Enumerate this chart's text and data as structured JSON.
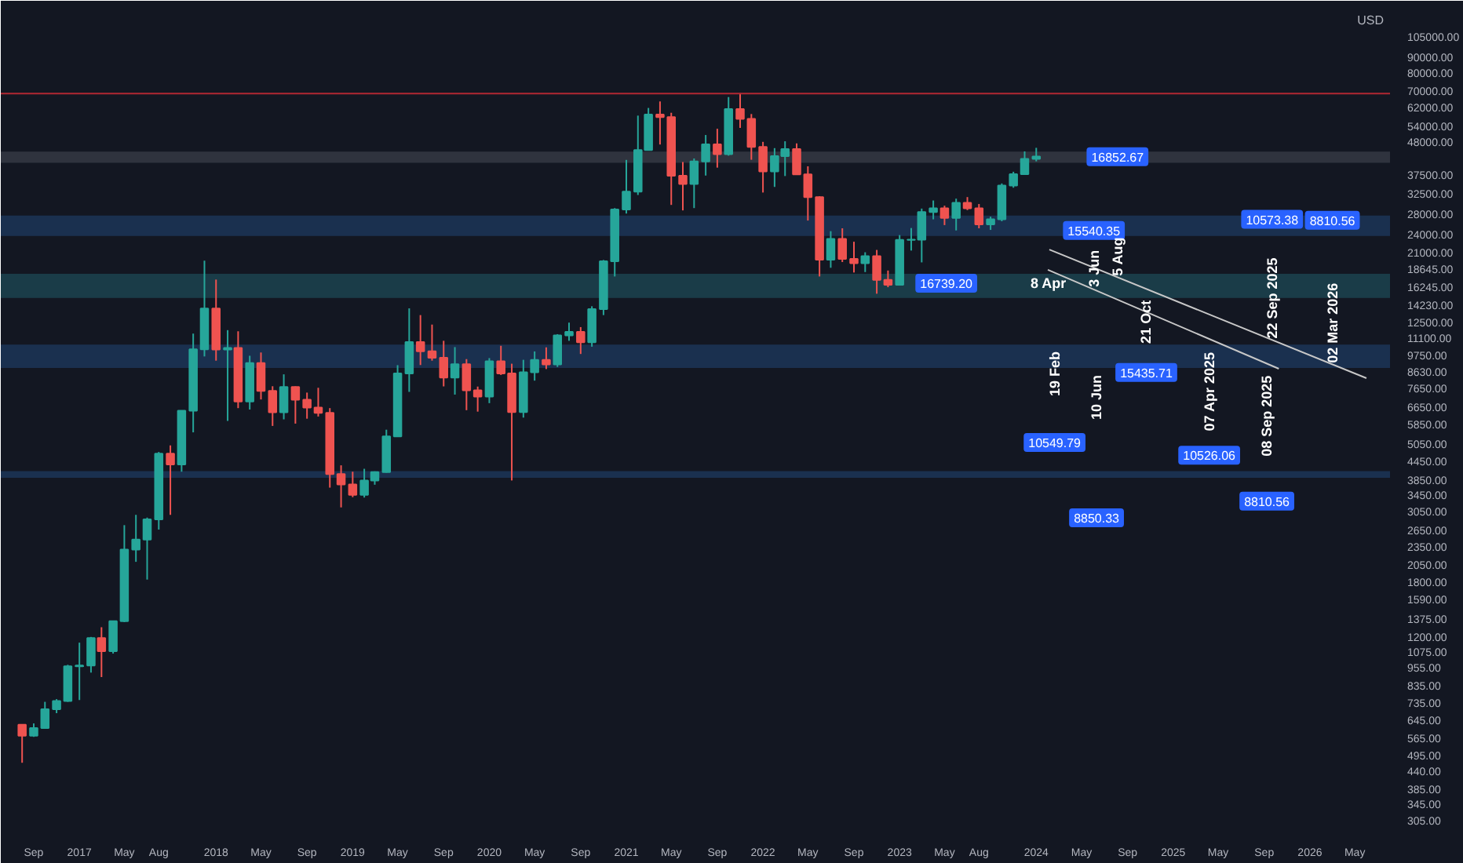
{
  "chart_data": {
    "type": "candlestick",
    "ylabel": "USD",
    "log": true,
    "x": [
      "2016-08",
      "2016-09",
      "2016-10",
      "2016-11",
      "2016-12",
      "2017-01",
      "2017-02",
      "2017-03",
      "2017-04",
      "2017-05",
      "2017-06",
      "2017-07",
      "2017-08",
      "2017-09",
      "2017-10",
      "2017-11",
      "2017-12",
      "2018-01",
      "2018-02",
      "2018-03",
      "2018-04",
      "2018-05",
      "2018-06",
      "2018-07",
      "2018-08",
      "2018-09",
      "2018-10",
      "2018-11",
      "2018-12",
      "2019-01",
      "2019-02",
      "2019-03",
      "2019-04",
      "2019-05",
      "2019-06",
      "2019-07",
      "2019-08",
      "2019-09",
      "2019-10",
      "2019-11",
      "2019-12",
      "2020-01",
      "2020-02",
      "2020-03",
      "2020-04",
      "2020-05",
      "2020-06",
      "2020-07",
      "2020-08",
      "2020-09",
      "2020-10",
      "2020-11",
      "2020-12",
      "2021-01",
      "2021-02",
      "2021-03",
      "2021-04",
      "2021-05",
      "2021-06",
      "2021-07",
      "2021-08",
      "2021-09",
      "2021-10",
      "2021-11",
      "2021-12",
      "2022-01",
      "2022-02",
      "2022-03",
      "2022-04",
      "2022-05",
      "2022-06",
      "2022-07",
      "2022-08",
      "2022-09",
      "2022-10",
      "2022-11",
      "2022-12",
      "2023-01",
      "2023-02",
      "2023-03",
      "2023-04",
      "2023-05",
      "2023-06",
      "2023-07",
      "2023-08",
      "2023-09",
      "2023-10",
      "2023-11",
      "2023-12",
      "2024-01"
    ],
    "ohlc": [
      [
        624,
        626,
        470,
        575
      ],
      [
        575,
        630,
        570,
        609
      ],
      [
        609,
        740,
        605,
        700
      ],
      [
        700,
        755,
        680,
        745
      ],
      [
        745,
        975,
        740,
        964
      ],
      [
        964,
        1150,
        750,
        970
      ],
      [
        970,
        1200,
        920,
        1190
      ],
      [
        1190,
        1290,
        890,
        1080
      ],
      [
        1080,
        1350,
        1060,
        1350
      ],
      [
        1350,
        2760,
        1340,
        2300
      ],
      [
        2300,
        2980,
        2100,
        2480
      ],
      [
        2480,
        2920,
        1840,
        2880
      ],
      [
        2880,
        4760,
        2670,
        4700
      ],
      [
        4700,
        5000,
        2980,
        4340
      ],
      [
        4340,
        6470,
        4110,
        6470
      ],
      [
        6470,
        11500,
        5510,
        10230
      ],
      [
        10230,
        19800,
        9700,
        13860
      ],
      [
        13860,
        17200,
        9400,
        10220
      ],
      [
        10220,
        11800,
        6000,
        10330
      ],
      [
        10330,
        11700,
        6600,
        6930
      ],
      [
        6930,
        9750,
        6530,
        9240
      ],
      [
        9240,
        9990,
        7040,
        7500
      ],
      [
        7500,
        7770,
        5780,
        6400
      ],
      [
        6400,
        8490,
        6070,
        7730
      ],
      [
        7730,
        7760,
        5880,
        7030
      ],
      [
        7030,
        7410,
        6100,
        6630
      ],
      [
        6630,
        7680,
        6200,
        6370
      ],
      [
        6370,
        6600,
        3650,
        4040
      ],
      [
        4040,
        4310,
        3150,
        3740
      ],
      [
        3740,
        4110,
        3400,
        3460
      ],
      [
        3460,
        4200,
        3390,
        3850
      ],
      [
        3850,
        4120,
        3730,
        4100
      ],
      [
        4100,
        5620,
        4080,
        5350
      ],
      [
        5350,
        9090,
        5350,
        8550
      ],
      [
        8550,
        13880,
        7450,
        10800
      ],
      [
        10800,
        13200,
        9100,
        10080
      ],
      [
        10080,
        12300,
        9400,
        9600
      ],
      [
        9600,
        10900,
        7760,
        8290
      ],
      [
        8290,
        10400,
        7300,
        9150
      ],
      [
        9150,
        9510,
        6500,
        7540
      ],
      [
        7540,
        7750,
        6430,
        7190
      ],
      [
        7190,
        9580,
        6850,
        9350
      ],
      [
        9350,
        10500,
        8450,
        8540
      ],
      [
        8540,
        9190,
        3850,
        6410
      ],
      [
        6410,
        9460,
        6150,
        8620
      ],
      [
        8620,
        10070,
        8100,
        9450
      ],
      [
        9450,
        10380,
        8830,
        9140
      ],
      [
        9140,
        11450,
        8970,
        11350
      ],
      [
        11350,
        12480,
        10900,
        11650
      ],
      [
        11650,
        12070,
        9880,
        10780
      ],
      [
        10780,
        14100,
        10430,
        13800
      ],
      [
        13800,
        19900,
        13200,
        19700
      ],
      [
        19700,
        29300,
        17600,
        28990
      ],
      [
        28990,
        41950,
        28130,
        33110
      ],
      [
        33110,
        58350,
        32300,
        45140
      ],
      [
        45140,
        61780,
        45000,
        58800
      ],
      [
        58800,
        64850,
        47050,
        57750
      ],
      [
        57750,
        59600,
        30000,
        37300
      ],
      [
        37300,
        41300,
        28800,
        35040
      ],
      [
        35040,
        42400,
        29300,
        41460
      ],
      [
        41460,
        50500,
        37330,
        47100
      ],
      [
        47100,
        52900,
        39600,
        43790
      ],
      [
        43790,
        67000,
        43300,
        61300
      ],
      [
        61300,
        69000,
        53250,
        56950
      ],
      [
        56950,
        59050,
        42000,
        46200
      ],
      [
        46200,
        47990,
        32900,
        38480
      ],
      [
        38480,
        45800,
        34300,
        43160
      ],
      [
        43160,
        48200,
        37200,
        45510
      ],
      [
        45510,
        47440,
        37600,
        37640
      ],
      [
        37640,
        40000,
        26700,
        31790
      ],
      [
        31790,
        31980,
        17600,
        19940
      ],
      [
        19940,
        24670,
        18780,
        23290
      ],
      [
        23290,
        25200,
        19600,
        20050
      ],
      [
        20050,
        22800,
        18130,
        19420
      ],
      [
        19420,
        21080,
        18190,
        20490
      ],
      [
        20490,
        21450,
        15480,
        17160
      ],
      [
        17160,
        18400,
        16250,
        16540
      ],
      [
        16540,
        23960,
        16500,
        23130
      ],
      [
        23130,
        25250,
        21350,
        23140
      ],
      [
        23140,
        29190,
        19550,
        28470
      ],
      [
        28470,
        31000,
        26940,
        29270
      ],
      [
        29270,
        29820,
        25810,
        27220
      ],
      [
        27220,
        31430,
        24800,
        30470
      ],
      [
        30470,
        31800,
        28860,
        29230
      ],
      [
        29230,
        30200,
        25200,
        25940
      ],
      [
        25940,
        27480,
        24900,
        26970
      ],
      [
        26970,
        35200,
        26560,
        34650
      ],
      [
        34650,
        38400,
        34100,
        37720
      ],
      [
        37720,
        44700,
        37600,
        42280
      ],
      [
        42280,
        45900,
        41500,
        43000
      ]
    ],
    "series": [
      {
        "type": "line",
        "color": "#c8c8c8",
        "x": [
          "2024-02-05",
          "2026-06-01"
        ],
        "values": [
          21500,
          8250
        ]
      },
      {
        "type": "line",
        "color": "#c8c8c8",
        "x": [
          "2024-02-01",
          "2025-10-10"
        ],
        "values": [
          18500,
          8850
        ]
      }
    ],
    "bands": [
      {
        "axis": "y",
        "from": 23800,
        "to": 27700,
        "color": "#1e3a5f"
      },
      {
        "axis": "y",
        "from": 15000,
        "to": 17950,
        "color": "#1d4a55"
      },
      {
        "axis": "y",
        "from": 8900,
        "to": 10600,
        "color": "#1e3a5f"
      },
      {
        "axis": "y",
        "from": 3930,
        "to": 4130,
        "color": "#1e3a5f"
      },
      {
        "axis": "y",
        "from": 41060,
        "to": 44640,
        "color": "#3a3e48"
      }
    ],
    "ref_lines": [
      {
        "axis": "y",
        "value": 68800,
        "color": "#b22833"
      }
    ],
    "annotations": [
      "10549.79",
      {
        "text": "19 Feb",
        "x": "2024-02-19",
        "y": 10549.79
      },
      "8850.33",
      {
        "text": "10 Jun",
        "x": "2024-06-10",
        "y": 8850.33
      },
      "16739.20",
      {
        "text": "8 Apr",
        "x": "2024-04-08",
        "y": 16739.2
      },
      "15540.35",
      {
        "text": "3 Jun",
        "x": "2024-06-03",
        "y": 15540.35
      },
      "16852.67",
      {
        "text": "5 Aug",
        "x": "2024-08-05",
        "y": 16852.67
      },
      "15435.71",
      {
        "text": "21 Oct",
        "x": "2024-10-21",
        "y": 15435.71
      },
      "10526.06",
      {
        "text": "07 Apr 2025",
        "x": "2025-04-07",
        "y": 10526.06
      },
      "8810.56",
      {
        "text": "08 Sep 2025",
        "x": "2025-09-08",
        "y": 8810.56
      },
      "10573.38",
      {
        "text": "22 Sep 2025",
        "x": "2025-09-22",
        "y": 10573.38
      },
      "8810.56",
      {
        "text": "02 Mar 2026",
        "x": "2026-03-02",
        "y": 8810.56
      }
    ],
    "xlim": [
      "2016-06-05",
      "2026-08-03"
    ],
    "xticks": [
      {
        "value": "2016-09-01",
        "label": "Sep"
      },
      {
        "value": "2017-01-01",
        "label": "2017"
      },
      {
        "value": "2017-05-01",
        "label": "May"
      },
      {
        "value": "2017-08-01",
        "label": "Aug"
      },
      {
        "value": "2018-01-01",
        "label": "2018"
      },
      {
        "value": "2018-05-01",
        "label": "May"
      },
      {
        "value": "2018-09-01",
        "label": "Sep"
      },
      {
        "value": "2019-01-01",
        "label": "2019"
      },
      {
        "value": "2019-05-01",
        "label": "May"
      },
      {
        "value": "2019-09-01",
        "label": "Sep"
      },
      {
        "value": "2020-01-01",
        "label": "2020"
      },
      {
        "value": "2020-05-01",
        "label": "May"
      },
      {
        "value": "2020-09-01",
        "label": "Sep"
      },
      {
        "value": "2021-01-01",
        "label": "2021"
      },
      {
        "value": "2021-05-01",
        "label": "May"
      },
      {
        "value": "2021-09-01",
        "label": "Sep"
      },
      {
        "value": "2022-01-01",
        "label": "2022"
      },
      {
        "value": "2022-05-01",
        "label": "May"
      },
      {
        "value": "2022-09-01",
        "label": "Sep"
      },
      {
        "value": "2023-01-01",
        "label": "2023"
      },
      {
        "value": "2023-05-01",
        "label": "May"
      },
      {
        "value": "2023-08-01",
        "label": "Aug"
      },
      {
        "value": "2024-01-01",
        "label": "2024"
      },
      {
        "value": "2024-05-01",
        "label": "May"
      },
      {
        "value": "2024-09-01",
        "label": "Sep"
      },
      {
        "value": "2025-01-01",
        "label": "2025"
      },
      {
        "value": "2025-05-01",
        "label": "May"
      },
      {
        "value": "2025-09-01",
        "label": "Sep"
      },
      {
        "value": "2026-01-01",
        "label": "2026"
      },
      {
        "value": "2026-05-01",
        "label": "May"
      }
    ],
    "ylim": [
      283,
      131000
    ],
    "yticks": [
      {
        "value": 305,
        "label": "305.00"
      },
      {
        "value": 345,
        "label": "345.00"
      },
      {
        "value": 385,
        "label": "385.00"
      },
      {
        "value": 440,
        "label": "440.00"
      },
      {
        "value": 495,
        "label": "495.00"
      },
      {
        "value": 565,
        "label": "565.00"
      },
      {
        "value": 645,
        "label": "645.00"
      },
      {
        "value": 735,
        "label": "735.00"
      },
      {
        "value": 835,
        "label": "835.00"
      },
      {
        "value": 955,
        "label": "955.00"
      },
      {
        "value": 1075,
        "label": "1075.00"
      },
      {
        "value": 1200,
        "label": "1200.00"
      },
      {
        "value": 1375,
        "label": "1375.00"
      },
      {
        "value": 1590,
        "label": "1590.00"
      },
      {
        "value": 1800,
        "label": "1800.00"
      },
      {
        "value": 2050,
        "label": "2050.00"
      },
      {
        "value": 2350,
        "label": "2350.00"
      },
      {
        "value": 2650,
        "label": "2650.00"
      },
      {
        "value": 3050,
        "label": "3050.00"
      },
      {
        "value": 3450,
        "label": "3450.00"
      },
      {
        "value": 3850,
        "label": "3850.00"
      },
      {
        "value": 4450,
        "label": "4450.00"
      },
      {
        "value": 5050,
        "label": "5050.00"
      },
      {
        "value": 5850,
        "label": "5850.00"
      },
      {
        "value": 6650,
        "label": "6650.00"
      },
      {
        "value": 7650,
        "label": "7650.00"
      },
      {
        "value": 8630,
        "label": "8630.00"
      },
      {
        "value": 9750,
        "label": "9750.00"
      },
      {
        "value": 11100,
        "label": "11100.00"
      },
      {
        "value": 12500,
        "label": "12500.00"
      },
      {
        "value": 14230,
        "label": "14230.00"
      },
      {
        "value": 16245,
        "label": "16245.00"
      },
      {
        "value": 18645,
        "label": "18645.00"
      },
      {
        "value": 21000,
        "label": "21000.00"
      },
      {
        "value": 24000,
        "label": "24000.00"
      },
      {
        "value": 28000,
        "label": "28000.00"
      },
      {
        "value": 32500,
        "label": "32500.00"
      },
      {
        "value": 37500,
        "label": "37500.00"
      },
      {
        "value": 48000,
        "label": "48000.00"
      },
      {
        "value": 54000,
        "label": "54000.00"
      },
      {
        "value": 62000,
        "label": "62000.00"
      },
      {
        "value": 70000,
        "label": "70000.00"
      },
      {
        "value": 80000,
        "label": "80000.00"
      },
      {
        "value": 90000,
        "label": "90000.00"
      },
      {
        "value": 105000,
        "label": "105000.00"
      }
    ]
  }
}
